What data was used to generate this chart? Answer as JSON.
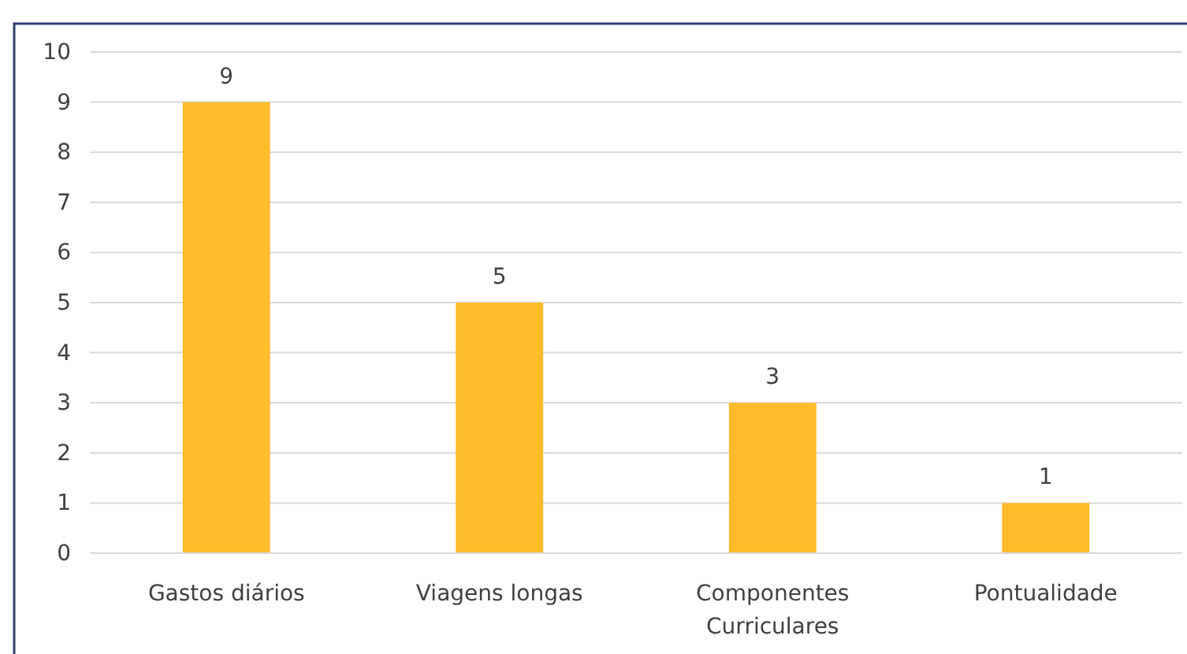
{
  "chart_data": {
    "type": "bar",
    "categories": [
      "Gastos diários",
      "Viagens longas",
      "Componentes Curriculares",
      "Pontualidade"
    ],
    "values": [
      9,
      5,
      3,
      1
    ],
    "color": "#fdbd2a",
    "ylim": [
      0,
      10
    ],
    "yticks": [
      0,
      1,
      2,
      3,
      4,
      5,
      6,
      7,
      8,
      9,
      10
    ],
    "grid": "y",
    "data_labels": true
  }
}
